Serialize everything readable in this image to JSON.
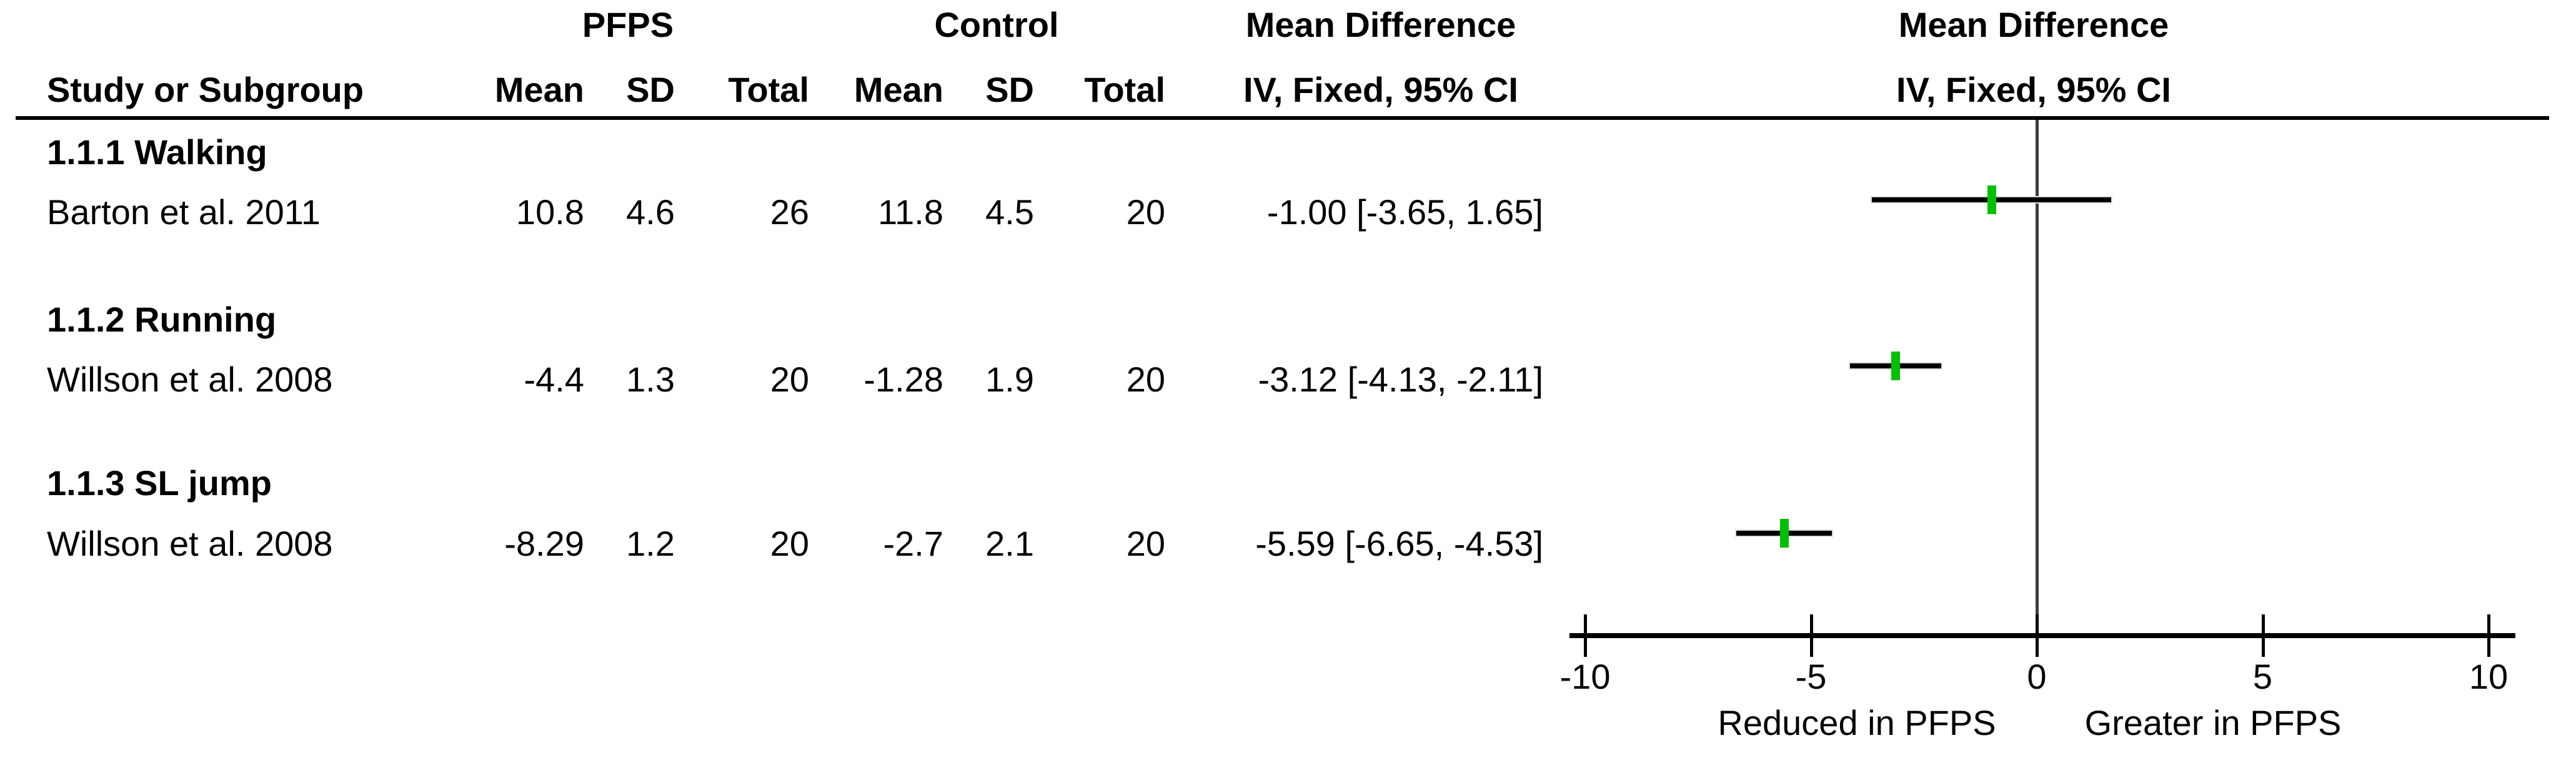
{
  "figure": {
    "col_headers": {
      "group1": "PFPS",
      "group2": "Control",
      "effect_top": "Mean Difference",
      "effect_bottom": "IV, Fixed, 95% CI",
      "plot_top": "Mean Difference",
      "plot_bottom": "IV, Fixed, 95% CI",
      "study": "Study or Subgroup",
      "mean": "Mean",
      "sd": "SD",
      "total": "Total"
    },
    "groups": [
      {
        "label": "1.1.1 Walking",
        "study": {
          "name": "Barton et al. 2011",
          "mean1": "10.8",
          "sd1": "4.6",
          "total1": "26",
          "mean2": "11.8",
          "sd2": "4.5",
          "total2": "20",
          "effect": "-1.00 [-3.65, 1.65]"
        }
      },
      {
        "label": "1.1.2 Running",
        "study": {
          "name": "Willson et al. 2008",
          "mean1": "-4.4",
          "sd1": "1.3",
          "total1": "20",
          "mean2": "-1.28",
          "sd2": "1.9",
          "total2": "20",
          "effect": "-3.12 [-4.13, -2.11]"
        }
      },
      {
        "label": "1.1.3 SL jump",
        "study": {
          "name": "Willson et al. 2008",
          "mean1": "-8.29",
          "sd1": "1.2",
          "total1": "20",
          "mean2": "-2.7",
          "sd2": "2.1",
          "total2": "20",
          "effect": "-5.59 [-6.65, -4.53]"
        }
      }
    ]
  },
  "chart_data": {
    "type": "scatter",
    "subtype": "forest-plot",
    "effect_measure": "Mean Difference",
    "model": "IV, Fixed, 95% CI",
    "rows": [
      {
        "study": "Barton et al. 2011",
        "subgroup": "1.1.1 Walking",
        "md": -1.0,
        "ci_low": -3.65,
        "ci_high": 1.65
      },
      {
        "study": "Willson et al. 2008",
        "subgroup": "1.1.2 Running",
        "md": -3.12,
        "ci_low": -4.13,
        "ci_high": -2.11
      },
      {
        "study": "Willson et al. 2008",
        "subgroup": "1.1.3 SL jump",
        "md": -5.59,
        "ci_low": -6.65,
        "ci_high": -4.53
      }
    ],
    "xticks": [
      -10,
      -5,
      0,
      5,
      10
    ],
    "xlim": [
      -10.35,
      10.6
    ],
    "zero_line_at": 0,
    "xlabel_left": "Reduced in PFPS",
    "xlabel_right": "Greater in PFPS",
    "grid": false,
    "legend": false,
    "marker_color": "#00c000",
    "ci_line_color": "#000000",
    "zero_line_color": "#3c3c3c"
  }
}
